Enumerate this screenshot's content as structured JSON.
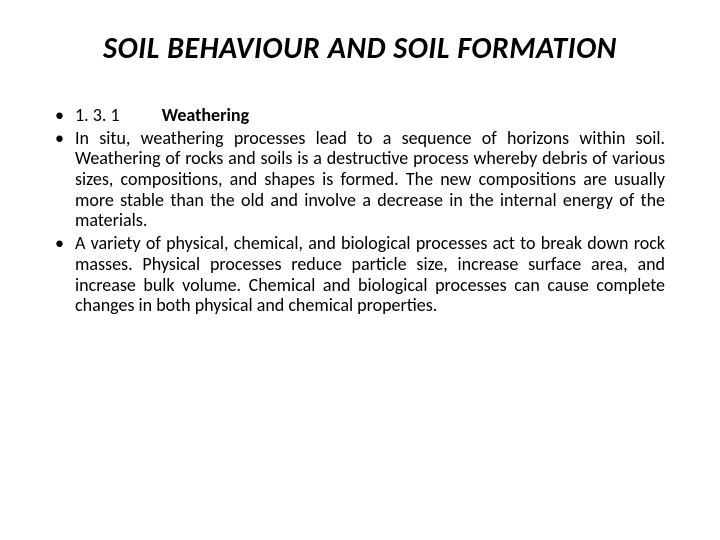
{
  "slide": {
    "title": "SOIL BEHAVIOUR AND SOIL FORMATION",
    "bullets": [
      {
        "type": "heading",
        "section_num": "1. 3. 1",
        "section_title": "Weathering"
      },
      {
        "type": "paragraph",
        "text": "In situ, weathering processes lead to a sequence of horizons within soil. Weathering of rocks and soils is a destructive process whereby debris of various sizes, compositions, and shapes is formed. The new compositions are usually more stable than the old and involve a decrease in the internal energy of the materials."
      },
      {
        "type": "paragraph",
        "text": "A variety of physical, chemical, and biological processes act to break down rock masses. Physical processes reduce particle size, increase surface area, and increase bulk volume. Chemical and biological processes can cause complete changes in both physical and chemical properties."
      }
    ]
  },
  "styling": {
    "background_color": "#ffffff",
    "title_fontsize": 30,
    "title_color": "#000000",
    "body_fontsize": 18,
    "body_color": "#000000",
    "bullet_char": "•"
  }
}
